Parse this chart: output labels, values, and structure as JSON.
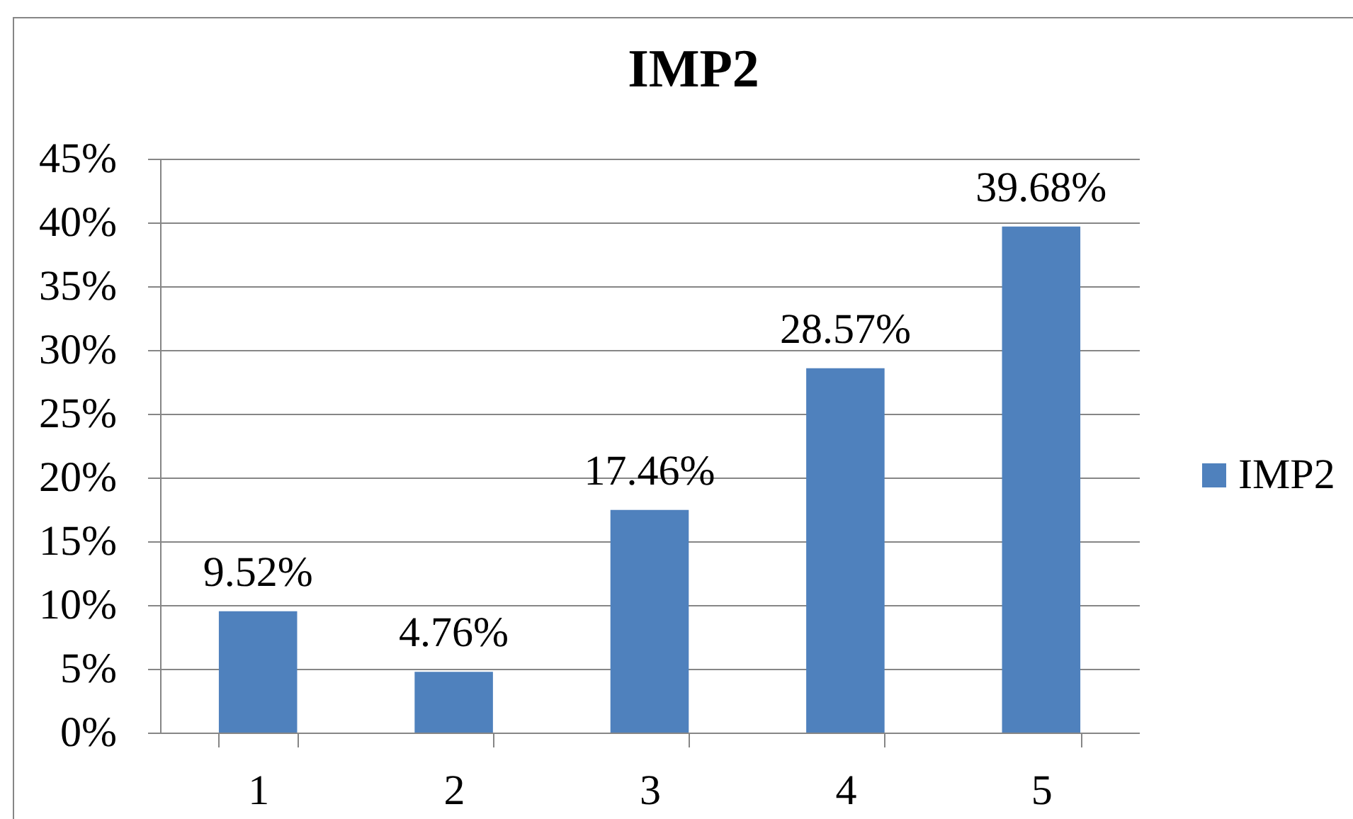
{
  "chart_data": {
    "type": "bar",
    "title": "IMP2",
    "categories": [
      "1",
      "2",
      "3",
      "4",
      "5"
    ],
    "series": [
      {
        "name": "IMP2",
        "color": "#4f81bd",
        "values": [
          9.52,
          4.76,
          17.46,
          28.57,
          39.68
        ],
        "value_labels": [
          "9.52%",
          "4.76%",
          "17.46%",
          "28.57%",
          "39.68%"
        ]
      }
    ],
    "ylim": [
      0,
      45
    ],
    "yticks": [
      {
        "value": 0,
        "label": "0%"
      },
      {
        "value": 5,
        "label": "5%"
      },
      {
        "value": 10,
        "label": "10%"
      },
      {
        "value": 15,
        "label": "15%"
      },
      {
        "value": 20,
        "label": "20%"
      },
      {
        "value": 25,
        "label": "25%"
      },
      {
        "value": 30,
        "label": "30%"
      },
      {
        "value": 35,
        "label": "35%"
      },
      {
        "value": 40,
        "label": "40%"
      },
      {
        "value": 45,
        "label": "45%"
      }
    ],
    "grid": "y",
    "legend": "right"
  }
}
